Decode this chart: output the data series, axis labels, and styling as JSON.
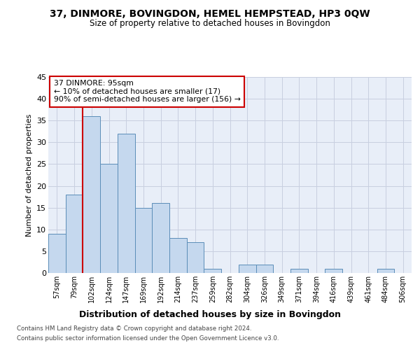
{
  "title": "37, DINMORE, BOVINGDON, HEMEL HEMPSTEAD, HP3 0QW",
  "subtitle": "Size of property relative to detached houses in Bovingdon",
  "xlabel": "Distribution of detached houses by size in Bovingdon",
  "ylabel": "Number of detached properties",
  "categories": [
    "57sqm",
    "79sqm",
    "102sqm",
    "124sqm",
    "147sqm",
    "169sqm",
    "192sqm",
    "214sqm",
    "237sqm",
    "259sqm",
    "282sqm",
    "304sqm",
    "326sqm",
    "349sqm",
    "371sqm",
    "394sqm",
    "416sqm",
    "439sqm",
    "461sqm",
    "484sqm",
    "506sqm"
  ],
  "values": [
    9,
    18,
    36,
    25,
    32,
    15,
    16,
    8,
    7,
    1,
    0,
    2,
    2,
    0,
    1,
    0,
    1,
    0,
    0,
    1,
    0
  ],
  "bar_color": "#c5d8ee",
  "bar_edge_color": "#5b8db8",
  "vline_color": "#cc0000",
  "vline_x": 1.5,
  "annotation_text": "37 DINMORE: 95sqm\n← 10% of detached houses are smaller (17)\n90% of semi-detached houses are larger (156) →",
  "annotation_box_facecolor": "#ffffff",
  "annotation_box_edgecolor": "#cc0000",
  "ylim": [
    0,
    45
  ],
  "yticks": [
    0,
    5,
    10,
    15,
    20,
    25,
    30,
    35,
    40,
    45
  ],
  "grid_color": "#c8cfe0",
  "background_color": "#e8eef8",
  "footer_line1": "Contains HM Land Registry data © Crown copyright and database right 2024.",
  "footer_line2": "Contains public sector information licensed under the Open Government Licence v3.0."
}
